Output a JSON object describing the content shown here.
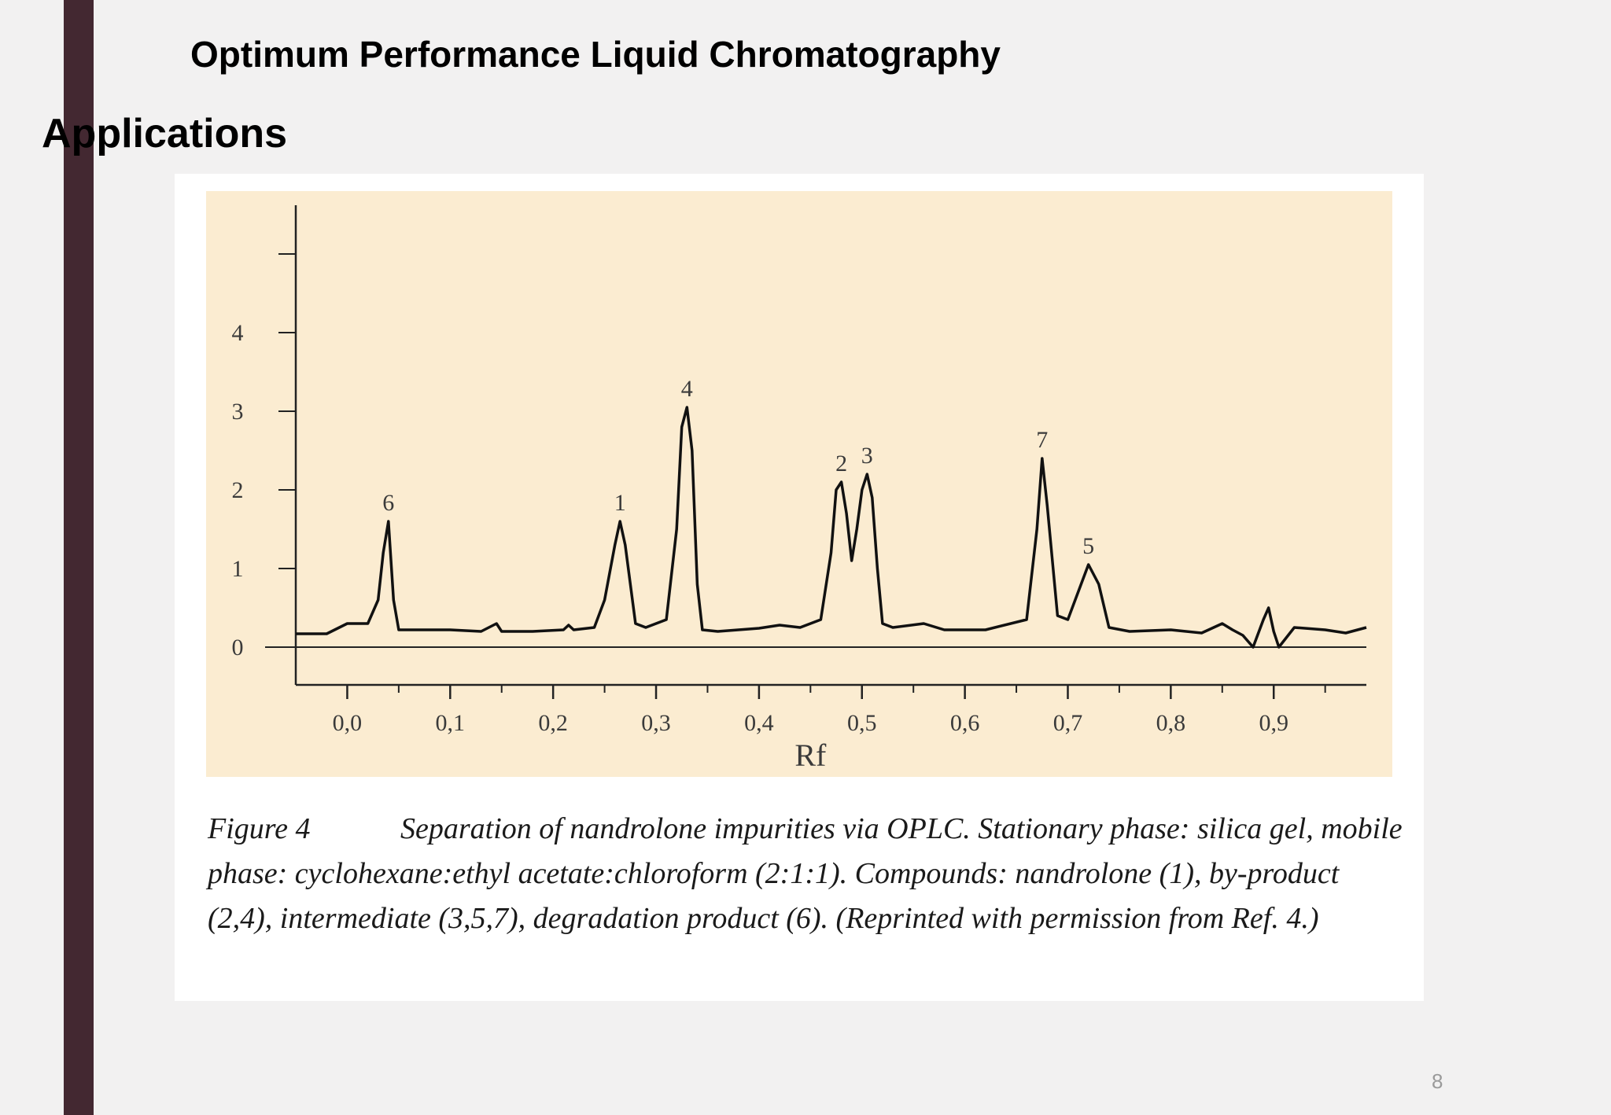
{
  "slide": {
    "title": "Optimum Performance Liquid Chromatography",
    "section_heading": "Applications",
    "page_number": "8"
  },
  "figure": {
    "caption_label": "Figure 4",
    "caption_text": "Separation of nandrolone impurities via OPLC. Stationary phase: silica gel, mobile phase: cyclohexane:ethyl acetate:chloroform (2:1:1). Compounds: nandrolone (1), by-product (2,4), intermediate (3,5,7), degradation product (6). (Reprinted with permission from Ref. 4.)"
  },
  "chart_data": {
    "type": "line",
    "title": "",
    "xlabel": "Rf",
    "ylabel": "",
    "xlim": [
      -0.05,
      0.99
    ],
    "ylim": [
      -0.5,
      5.1
    ],
    "x_ticks": [
      0.0,
      0.1,
      0.2,
      0.3,
      0.4,
      0.5,
      0.6,
      0.7,
      0.8,
      0.9
    ],
    "x_tick_labels": [
      "0,0",
      "0,1",
      "0,2",
      "0,3",
      "0,4",
      "0,5",
      "0,6",
      "0,7",
      "0,8",
      "0,9"
    ],
    "y_ticks": [
      0,
      1,
      2,
      3,
      4
    ],
    "y_tick_labels": [
      "0",
      "1",
      "2",
      "3",
      "4"
    ],
    "grid": false,
    "series": [
      {
        "color": "#111111",
        "x": [
          -0.05,
          -0.02,
          0.0,
          0.02,
          0.03,
          0.035,
          0.04,
          0.045,
          0.05,
          0.07,
          0.1,
          0.13,
          0.145,
          0.15,
          0.155,
          0.18,
          0.21,
          0.215,
          0.22,
          0.24,
          0.25,
          0.26,
          0.265,
          0.27,
          0.28,
          0.29,
          0.31,
          0.32,
          0.325,
          0.33,
          0.335,
          0.34,
          0.345,
          0.36,
          0.4,
          0.42,
          0.44,
          0.46,
          0.47,
          0.475,
          0.48,
          0.485,
          0.49,
          0.495,
          0.5,
          0.505,
          0.51,
          0.515,
          0.52,
          0.53,
          0.56,
          0.58,
          0.62,
          0.66,
          0.67,
          0.675,
          0.68,
          0.69,
          0.7,
          0.71,
          0.72,
          0.73,
          0.74,
          0.76,
          0.8,
          0.83,
          0.85,
          0.86,
          0.87,
          0.88,
          0.89,
          0.895,
          0.9,
          0.905,
          0.92,
          0.95,
          0.97,
          0.99
        ],
        "y": [
          0.17,
          0.17,
          0.3,
          0.3,
          0.6,
          1.2,
          1.6,
          0.6,
          0.22,
          0.22,
          0.22,
          0.2,
          0.3,
          0.2,
          0.2,
          0.2,
          0.22,
          0.28,
          0.22,
          0.25,
          0.6,
          1.3,
          1.6,
          1.3,
          0.3,
          0.25,
          0.35,
          1.5,
          2.8,
          3.05,
          2.5,
          0.8,
          0.22,
          0.2,
          0.24,
          0.28,
          0.25,
          0.35,
          1.2,
          2.0,
          2.1,
          1.7,
          1.1,
          1.5,
          2.0,
          2.2,
          1.9,
          1.0,
          0.3,
          0.25,
          0.3,
          0.22,
          0.22,
          0.35,
          1.5,
          2.4,
          1.8,
          0.4,
          0.35,
          0.7,
          1.05,
          0.8,
          0.25,
          0.2,
          0.22,
          0.18,
          0.3,
          0.22,
          0.15,
          0.0,
          0.35,
          0.5,
          0.2,
          0.0,
          0.25,
          0.22,
          0.18,
          0.25
        ]
      }
    ],
    "peak_labels": [
      {
        "text": "6",
        "x": 0.04,
        "y": 1.6
      },
      {
        "text": "1",
        "x": 0.265,
        "y": 1.6
      },
      {
        "text": "4",
        "x": 0.33,
        "y": 3.05
      },
      {
        "text": "2",
        "x": 0.48,
        "y": 2.1
      },
      {
        "text": "3",
        "x": 0.505,
        "y": 2.2
      },
      {
        "text": "7",
        "x": 0.675,
        "y": 2.4
      },
      {
        "text": "5",
        "x": 0.72,
        "y": 1.05
      }
    ]
  }
}
